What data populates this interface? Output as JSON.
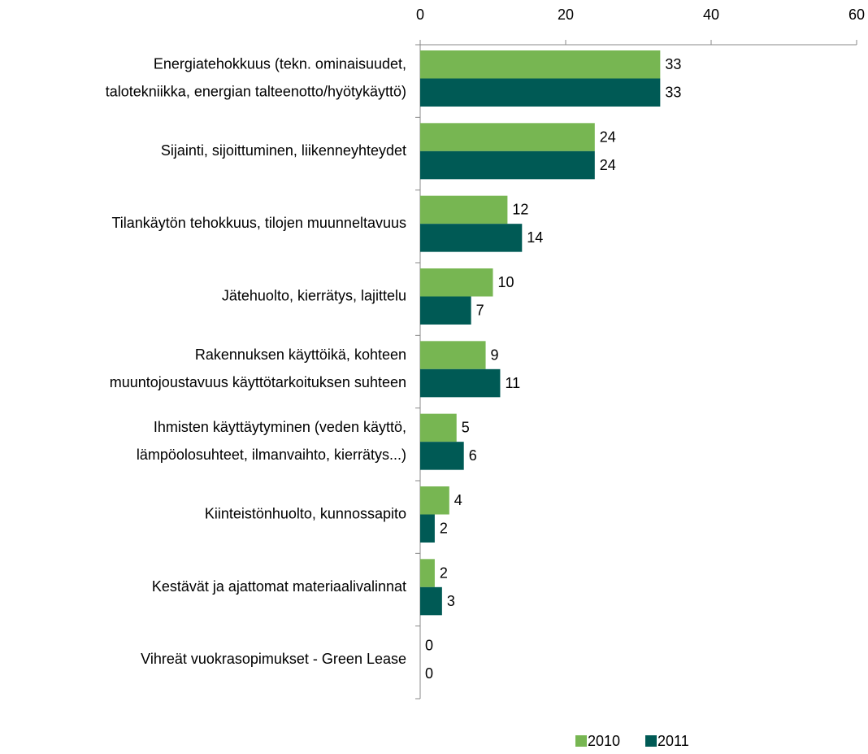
{
  "chart_data": {
    "type": "bar",
    "orientation": "horizontal",
    "categories": [
      "Energiatehokkuus (tekn. ominaisuudet,\ntalotekniikka, energian talteenotto/hyötykäyttö)",
      "Sijainti, sijoittuminen, liikenneyhteydet",
      "Tilankäytön tehokkuus, tilojen muunneltavuus",
      "Jätehuolto, kierrätys, lajittelu",
      "Rakennuksen käyttöikä, kohteen\nmuuntojoustavuus käyttötarkoituksen suhteen",
      "Ihmisten käyttäytyminen (veden käyttö,\nlämpöolosuhteet, ilmanvaihto, kierrätys...)",
      "Kiinteistönhuolto, kunnossapito",
      "Kestävät ja ajattomat materiaalivalinnat",
      "Vihreät vuokrasopimukset - Green Lease"
    ],
    "series": [
      {
        "name": "2010",
        "color": "#77b652",
        "values": [
          33,
          24,
          12,
          10,
          9,
          5,
          4,
          2,
          0
        ]
      },
      {
        "name": "2011",
        "color": "#005a55",
        "values": [
          33,
          24,
          14,
          7,
          11,
          6,
          2,
          3,
          0
        ]
      }
    ],
    "xlim": [
      0,
      60
    ],
    "xticks": [
      0,
      20,
      40,
      60
    ],
    "legend": "bottom-right"
  }
}
